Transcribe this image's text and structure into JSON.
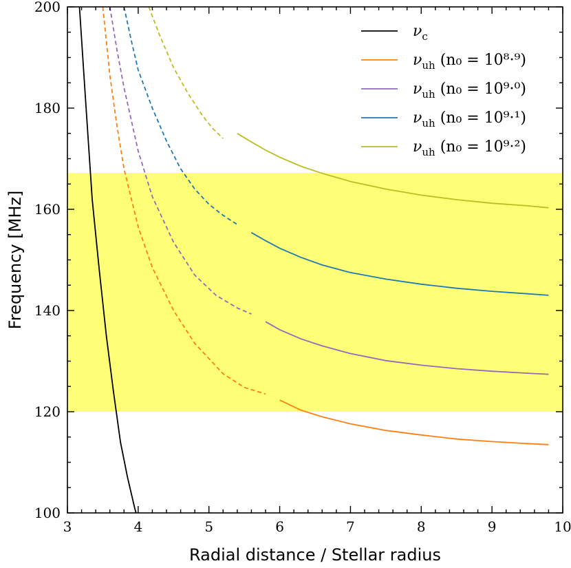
{
  "chart_data": {
    "type": "line",
    "xlabel": "Radial distance / Stellar radius",
    "ylabel": "Frequency [MHz]",
    "xlim": [
      3,
      10
    ],
    "ylim": [
      100,
      200
    ],
    "xticks": [
      3,
      4,
      5,
      6,
      7,
      8,
      9,
      10
    ],
    "yticks": [
      100,
      120,
      140,
      160,
      180,
      200
    ],
    "xtick_labels": [
      "3",
      "4",
      "5",
      "6",
      "7",
      "8",
      "9",
      "10"
    ],
    "ytick_labels": [
      "100",
      "120",
      "140",
      "160",
      "180",
      "200"
    ],
    "band": {
      "ymin": 120,
      "ymax": 167.2,
      "color": "#ffff77"
    },
    "legend": {
      "location": "top-right",
      "entries": [
        {
          "symbol": "ν",
          "sub": "c",
          "rest": ""
        },
        {
          "symbol": "ν",
          "sub": "uh",
          "rest": " (n₀ = 10⁸·⁹)"
        },
        {
          "symbol": "ν",
          "sub": "uh",
          "rest": " (n₀ = 10⁹·⁰)"
        },
        {
          "symbol": "ν",
          "sub": "uh",
          "rest": " (n₀ = 10⁹·¹)"
        },
        {
          "symbol": "ν",
          "sub": "uh",
          "rest": " (n₀ = 10⁹·²)"
        }
      ]
    },
    "series": [
      {
        "name": "ν_c",
        "color": "#000000",
        "segments": [
          {
            "style": "solid",
            "x": [
              3.17,
              3.25,
              3.35,
              3.45,
              3.55,
              3.65,
              3.75,
              3.85,
              3.95,
              3.97
            ],
            "y": [
              200,
              183,
              162,
              148,
              135,
              124,
              114,
              107,
              101,
              100
            ]
          }
        ]
      },
      {
        "name": "ν_uh (n₀ = 10^8.9)",
        "color": "#ff7f0e",
        "segments": [
          {
            "style": "dashed",
            "x": [
              3.5,
              3.6,
              3.7,
              3.8,
              4.0,
              4.2,
              4.5,
              4.8,
              5.2,
              5.5,
              5.8
            ],
            "y": [
              200,
              186.5,
              176.5,
              168,
              156.5,
              148.5,
              140,
              133.5,
              127.5,
              124.8,
              123.5
            ]
          },
          {
            "style": "solid",
            "x": [
              6.0,
              6.3,
              6.6,
              7.0,
              7.5,
              8.0,
              8.5,
              9.0,
              9.5,
              9.8
            ],
            "y": [
              122.3,
              120.3,
              119.0,
              117.6,
              116.3,
              115.4,
              114.6,
              114.1,
              113.7,
              113.5
            ]
          }
        ]
      },
      {
        "name": "ν_uh (n₀ = 10^9.0)",
        "color": "#9467bd",
        "segments": [
          {
            "style": "dashed",
            "x": [
              3.6,
              3.7,
              3.8,
              4.0,
              4.2,
              4.5,
              4.8,
              5.1,
              5.4,
              5.6
            ],
            "y": [
              200,
              191.5,
              184,
              171.5,
              162.5,
              153.5,
              147,
              143,
              140.5,
              139.3
            ]
          },
          {
            "style": "solid",
            "x": [
              5.8,
              6.0,
              6.3,
              6.6,
              7.0,
              7.5,
              8.0,
              8.5,
              9.0,
              9.5,
              9.8
            ],
            "y": [
              137.8,
              136.2,
              134.4,
              133.0,
              131.5,
              130.1,
              129.2,
              128.5,
              128.0,
              127.6,
              127.4
            ]
          }
        ]
      },
      {
        "name": "ν_uh (n₀ = 10^9.1)",
        "color": "#1f77b4",
        "segments": [
          {
            "style": "dashed",
            "x": [
              3.8,
              3.9,
              4.0,
              4.2,
              4.4,
              4.6,
              4.8,
              5.0,
              5.2,
              5.4
            ],
            "y": [
              200,
              193.5,
              187.5,
              180,
              173.5,
              168,
              164,
              161,
              158.8,
              157
            ]
          },
          {
            "style": "solid",
            "x": [
              5.6,
              5.8,
              6.0,
              6.3,
              6.6,
              7.0,
              7.5,
              8.0,
              8.5,
              9.0,
              9.5,
              9.8
            ],
            "y": [
              155.4,
              153.8,
              152.3,
              150.5,
              149.0,
              147.5,
              146.2,
              145.2,
              144.4,
              143.8,
              143.3,
              143.0
            ]
          }
        ]
      },
      {
        "name": "ν_uh (n₀ = 10^9.2)",
        "color": "#bcbd22",
        "segments": [
          {
            "style": "dashed",
            "x": [
              4.15,
              4.3,
              4.5,
              4.7,
              4.9,
              5.05,
              5.2
            ],
            "y": [
              200,
              194.5,
              188,
              183,
              178.7,
              176,
              174
            ]
          },
          {
            "style": "solid",
            "x": [
              5.4,
              5.6,
              5.8,
              6.0,
              6.3,
              6.6,
              7.0,
              7.5,
              8.0,
              8.5,
              9.0,
              9.5,
              9.8
            ],
            "y": [
              175,
              173.3,
              171.7,
              170.3,
              168.5,
              167.1,
              165.5,
              164.0,
              162.8,
              161.9,
              161.2,
              160.7,
              160.3
            ]
          }
        ]
      }
    ]
  }
}
